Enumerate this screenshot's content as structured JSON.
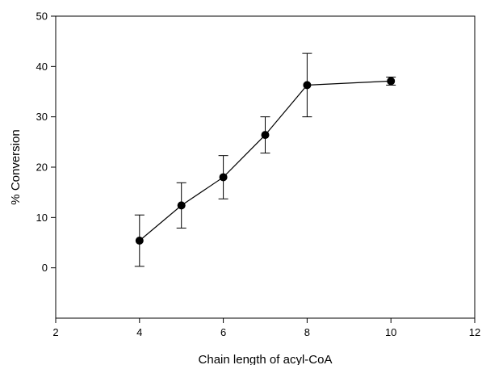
{
  "chart_data": {
    "type": "line",
    "title": "",
    "xlabel": "Chain length of acyl-CoA",
    "ylabel": "% Conversion",
    "xlim": [
      2,
      12
    ],
    "ylim": [
      -10,
      50
    ],
    "xticks": [
      2,
      4,
      6,
      8,
      10,
      12
    ],
    "yticks": [
      0,
      10,
      20,
      30,
      40,
      50
    ],
    "grid": false,
    "legend": "none",
    "series": [
      {
        "x": [
          4,
          5,
          6,
          7,
          8,
          10
        ],
        "y": [
          5.4,
          12.4,
          18.0,
          26.4,
          36.3,
          37.1
        ],
        "error": [
          5.1,
          4.5,
          4.3,
          3.6,
          6.3,
          0.8
        ],
        "marker": "filled-circle",
        "color": "#000000"
      }
    ]
  }
}
